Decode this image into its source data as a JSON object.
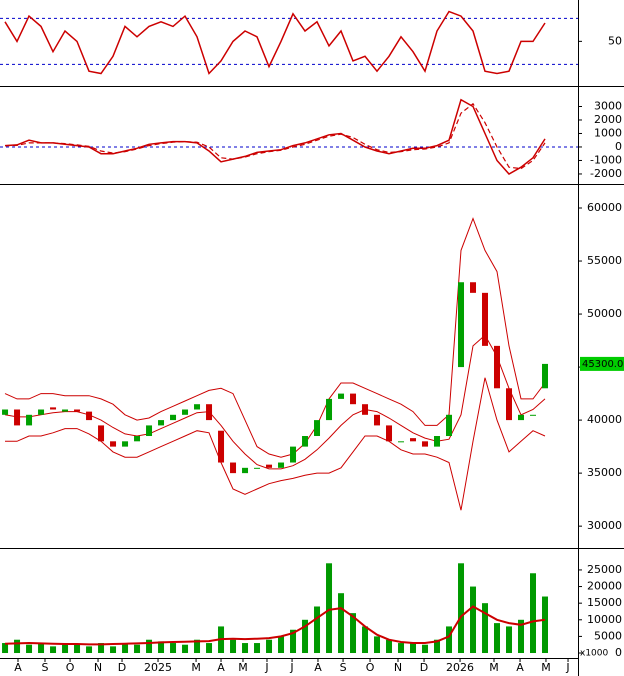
{
  "chart_data": [
    {
      "type": "line",
      "x": [
        0,
        1,
        2,
        3,
        4,
        5,
        6,
        7,
        8,
        9,
        10,
        11,
        12,
        13,
        14,
        15,
        16,
        17,
        18,
        19,
        20,
        21,
        22,
        23,
        24,
        25,
        26,
        27,
        28,
        29,
        30,
        31,
        32,
        33,
        34,
        35,
        36,
        37,
        38,
        39,
        40,
        41,
        42,
        43,
        44,
        45
      ],
      "values": [
        67,
        50,
        72,
        63,
        41,
        59,
        50,
        24,
        22,
        37,
        63,
        54,
        63,
        67,
        63,
        72,
        54,
        22,
        33,
        50,
        59,
        54,
        28,
        50,
        74,
        59,
        67,
        46,
        59,
        33,
        37,
        24,
        37,
        54,
        41,
        24,
        59,
        76,
        72,
        59,
        24,
        22,
        24,
        50,
        50,
        66
      ],
      "color": "#cc0000",
      "levels": [
        30,
        70
      ],
      "level_color": "#0000cc",
      "xlim": [
        -0.42,
        47.75
      ],
      "ylim": [
        12,
        86
      ],
      "yticks": [
        50
      ]
    },
    {
      "type": "line",
      "x": [
        0,
        1,
        2,
        3,
        4,
        5,
        6,
        7,
        8,
        9,
        10,
        11,
        12,
        13,
        14,
        15,
        16,
        17,
        18,
        19,
        20,
        21,
        22,
        23,
        24,
        25,
        26,
        27,
        28,
        29,
        30,
        31,
        32,
        33,
        34,
        35,
        36,
        37,
        38,
        39,
        40,
        41,
        42,
        43,
        44,
        45
      ],
      "values": [
        100,
        150,
        500,
        300,
        300,
        200,
        100,
        0,
        -500,
        -500,
        -300,
        -100,
        200,
        300,
        400,
        400,
        300,
        -300,
        -1100,
        -900,
        -700,
        -400,
        -300,
        -200,
        100,
        300,
        600,
        900,
        1000,
        500,
        0,
        -300,
        -500,
        -300,
        -100,
        -100,
        100,
        500,
        3500,
        3000,
        1000,
        -1000,
        -2000,
        -1500,
        -800,
        600
      ],
      "signal": [
        100,
        120,
        300,
        300,
        300,
        250,
        150,
        50,
        -300,
        -450,
        -350,
        -150,
        100,
        250,
        350,
        400,
        350,
        0,
        -800,
        -900,
        -750,
        -500,
        -350,
        -250,
        0,
        200,
        500,
        800,
        950,
        700,
        200,
        -200,
        -400,
        -350,
        -200,
        -150,
        0,
        300,
        2500,
        3200,
        1800,
        0,
        -1500,
        -1600,
        -1000,
        300
      ],
      "color": "#cc0000",
      "levels": [
        0
      ],
      "level_color": "#0000cc",
      "xlim": [
        -0.42,
        47.75
      ],
      "ylim": [
        -2670,
        4370
      ],
      "yticks": [
        -2000,
        -1000,
        0,
        1000,
        2000,
        3000
      ]
    },
    {
      "type": "candlestick",
      "x": [
        0,
        1,
        2,
        3,
        4,
        5,
        6,
        7,
        8,
        9,
        10,
        11,
        12,
        13,
        14,
        15,
        16,
        17,
        18,
        19,
        20,
        21,
        22,
        23,
        24,
        25,
        26,
        27,
        28,
        29,
        30,
        31,
        32,
        33,
        34,
        35,
        36,
        37,
        38,
        39,
        40,
        41,
        42,
        43,
        44,
        45
      ],
      "open": [
        40500,
        41000,
        39500,
        40500,
        41200,
        40800,
        41000,
        40800,
        39500,
        38000,
        37500,
        38000,
        38500,
        39500,
        40000,
        40500,
        41000,
        41500,
        39000,
        36000,
        35000,
        35500,
        35800,
        35500,
        36000,
        37500,
        38500,
        40000,
        42000,
        42500,
        41500,
        40500,
        39500,
        38000,
        38300,
        38000,
        37500,
        38500,
        45000,
        53000,
        52000,
        47000,
        43000,
        40000,
        40500,
        43000
      ],
      "close": [
        41000,
        39500,
        40500,
        41000,
        41000,
        41000,
        40800,
        40000,
        38000,
        37500,
        38000,
        38500,
        39500,
        40000,
        40500,
        41000,
        41500,
        40000,
        36000,
        35000,
        35500,
        35500,
        35500,
        36000,
        37500,
        38500,
        40000,
        42000,
        42500,
        41500,
        40500,
        39500,
        38000,
        38000,
        38000,
        37500,
        38500,
        40500,
        53000,
        52000,
        47000,
        43000,
        40000,
        40500,
        40500,
        45300
      ],
      "upper": [
        42500,
        42000,
        42000,
        42500,
        42500,
        42300,
        42300,
        42300,
        42000,
        41500,
        40500,
        40000,
        40200,
        40800,
        41300,
        41800,
        42300,
        42800,
        43000,
        42500,
        40000,
        37500,
        36800,
        36500,
        36800,
        37800,
        39500,
        42000,
        43500,
        43500,
        43000,
        42500,
        42000,
        41500,
        40800,
        39500,
        39500,
        40500,
        56000,
        59000,
        56000,
        54000,
        47000,
        42000,
        42000,
        43500
      ],
      "ma": [
        40500,
        40300,
        40300,
        40500,
        40700,
        40800,
        40800,
        40500,
        40000,
        39300,
        38700,
        38500,
        38700,
        39200,
        39700,
        40200,
        40700,
        40800,
        39500,
        38000,
        36800,
        35800,
        35400,
        35400,
        35700,
        36300,
        37200,
        38300,
        39500,
        40500,
        41000,
        40800,
        40200,
        39500,
        38800,
        38300,
        38000,
        38200,
        40500,
        47000,
        48000,
        46000,
        43000,
        40500,
        41000,
        42000
      ],
      "lower": [
        38000,
        38000,
        38500,
        38500,
        38800,
        39200,
        39200,
        38700,
        38000,
        37000,
        36500,
        36500,
        37000,
        37500,
        38000,
        38500,
        39000,
        38800,
        36000,
        33500,
        33000,
        33500,
        34000,
        34300,
        34500,
        34800,
        35000,
        35000,
        35500,
        37000,
        38500,
        38500,
        38000,
        37200,
        36800,
        36800,
        36500,
        36000,
        31500,
        38000,
        44000,
        40000,
        37000,
        38000,
        39000,
        38500
      ],
      "up_color": "#00a000",
      "down_color": "#cc0000",
      "band_color": "#cc0000",
      "last_label": {
        "value": 45300,
        "label": "45300.00"
      },
      "last_color": "#00cc00",
      "xlim": [
        -0.42,
        47.75
      ],
      "ylim": [
        27940,
        62075
      ],
      "yticks": [
        30000,
        35000,
        40000,
        45000,
        50000,
        55000,
        60000
      ]
    },
    {
      "type": "bar",
      "x": [
        0,
        1,
        2,
        3,
        4,
        5,
        6,
        7,
        8,
        9,
        10,
        11,
        12,
        13,
        14,
        15,
        16,
        17,
        18,
        19,
        20,
        21,
        22,
        23,
        24,
        25,
        26,
        27,
        28,
        29,
        30,
        31,
        32,
        33,
        34,
        35,
        36,
        37,
        38,
        39,
        40,
        41,
        42,
        43,
        44,
        45
      ],
      "values": [
        3000,
        4000,
        2500,
        3000,
        2000,
        3000,
        2500,
        2000,
        3000,
        2000,
        3000,
        2500,
        4000,
        3500,
        3000,
        2500,
        4000,
        3000,
        8000,
        4000,
        3000,
        3000,
        4000,
        5000,
        7000,
        10000,
        14000,
        27000,
        18000,
        12000,
        8000,
        5000,
        4000,
        3000,
        3000,
        2500,
        4000,
        8000,
        27000,
        20000,
        15000,
        9000,
        8000,
        10000,
        24000,
        17000
      ],
      "ma": [
        2800,
        2900,
        3000,
        2900,
        2800,
        2700,
        2700,
        2600,
        2600,
        2700,
        2800,
        2900,
        3000,
        3200,
        3300,
        3400,
        3500,
        3600,
        4200,
        4300,
        4200,
        4300,
        4500,
        5000,
        6000,
        8000,
        10500,
        13000,
        13500,
        11000,
        8000,
        5500,
        4000,
        3300,
        3000,
        3000,
        3500,
        5000,
        11000,
        14000,
        12000,
        10000,
        9000,
        8500,
        9500,
        10000
      ],
      "color": "#009900",
      "ma_color": "#cc0000",
      "unit_label": "x1000",
      "xlim": [
        -0.42,
        47.75
      ],
      "ylim": [
        -1500,
        31000
      ],
      "yticks": [
        0,
        5000,
        10000,
        15000,
        20000,
        25000
      ],
      "xticks": [
        {
          "value": 1.08,
          "label": "A"
        },
        {
          "value": 3.33,
          "label": "S"
        },
        {
          "value": 5.42,
          "label": "O"
        },
        {
          "value": 7.75,
          "label": "N"
        },
        {
          "value": 9.75,
          "label": "D"
        },
        {
          "value": 12.75,
          "label": "2025"
        },
        {
          "value": 15.92,
          "label": "M"
        },
        {
          "value": 18,
          "label": "A"
        },
        {
          "value": 19.83,
          "label": "M"
        },
        {
          "value": 21.83,
          "label": "J"
        },
        {
          "value": 23.92,
          "label": "J"
        },
        {
          "value": 26.08,
          "label": "A"
        },
        {
          "value": 28.17,
          "label": "S"
        },
        {
          "value": 30.42,
          "label": "O"
        },
        {
          "value": 32.75,
          "label": "N"
        },
        {
          "value": 34.92,
          "label": "D"
        },
        {
          "value": 37.92,
          "label": "2026"
        },
        {
          "value": 40.75,
          "label": "M"
        },
        {
          "value": 42.92,
          "label": "A"
        },
        {
          "value": 45.08,
          "label": "M"
        },
        {
          "value": 46.92,
          "label": "J"
        }
      ]
    }
  ]
}
